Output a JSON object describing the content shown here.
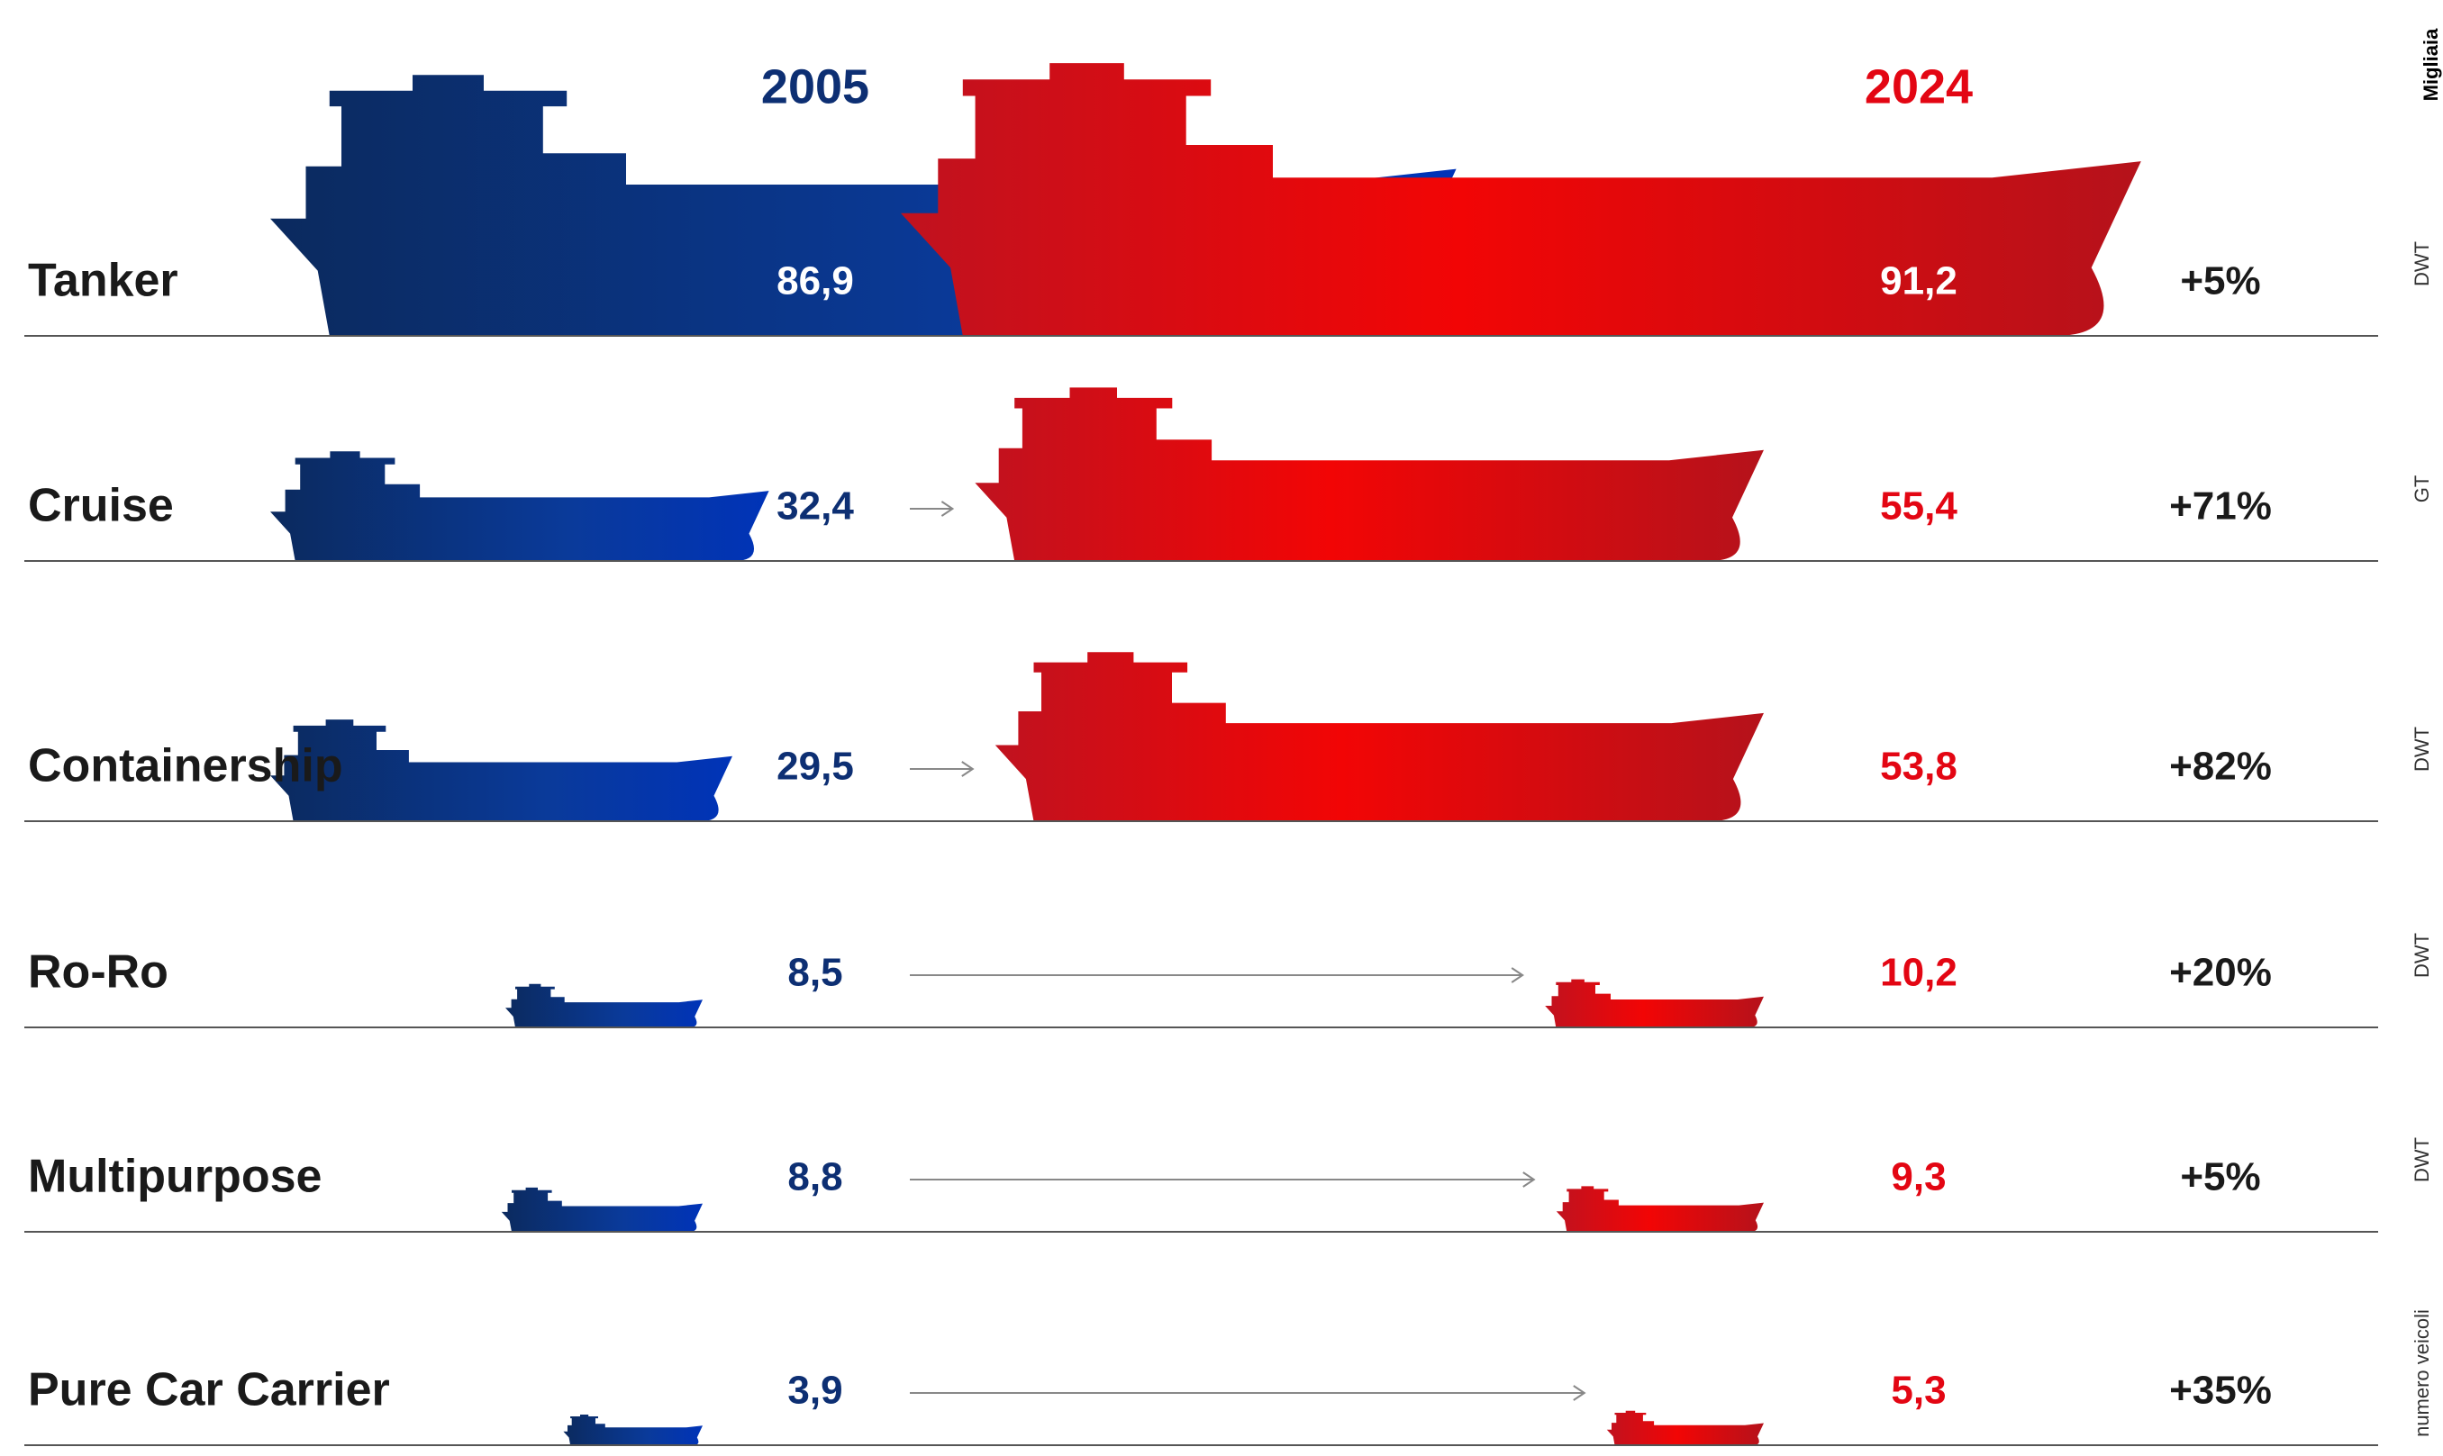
{
  "chart_data": {
    "type": "ship-pictogram",
    "unit_note": "Migliaia",
    "categories": [
      "Tanker",
      "Cruise",
      "Containership",
      "Ro-Ro",
      "Multipurpose",
      "Pure Car Carrier"
    ],
    "units": [
      "DWT",
      "GT",
      "DWT",
      "DWT",
      "DWT",
      "numero veicoli"
    ],
    "series": [
      {
        "name": "2005",
        "color": "#0d2f73",
        "values": [
          86.9,
          32.4,
          29.5,
          8.5,
          8.8,
          3.9
        ],
        "value_labels": [
          "86,9",
          "32,4",
          "29,5",
          "8,5",
          "8,8",
          "3,9"
        ]
      },
      {
        "name": "2024",
        "color": "#e30613",
        "values": [
          91.2,
          55.4,
          53.8,
          10.2,
          9.3,
          5.3
        ],
        "value_labels": [
          "91,2",
          "55,4",
          "53,8",
          "10,2",
          "9,3",
          "5,3"
        ]
      }
    ],
    "change": {
      "values": [
        5,
        71,
        82,
        20,
        5,
        35
      ],
      "value_labels": [
        "+5%",
        "+71%",
        "+82%",
        "+20%",
        "+5%",
        "+35%"
      ]
    }
  }
}
